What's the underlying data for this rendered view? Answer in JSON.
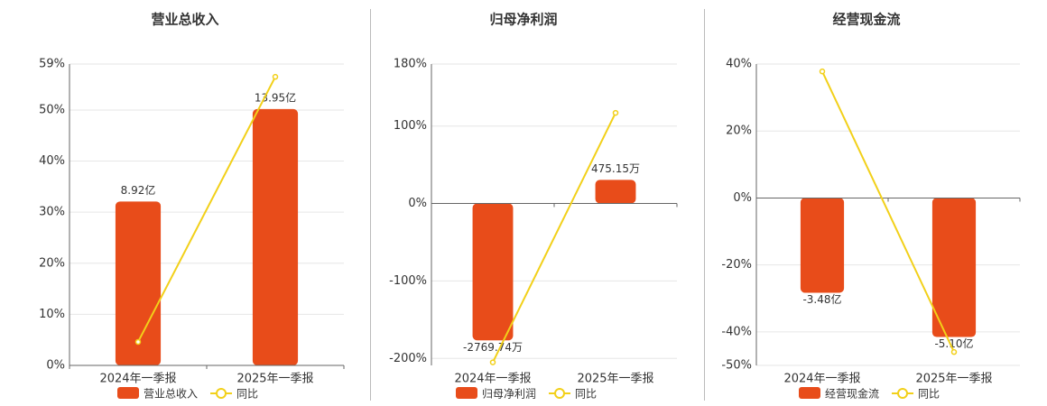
{
  "chart_data": [
    {
      "type": "combo",
      "title": "营业总收入",
      "categories": [
        "2024年一季报",
        "2025年一季报"
      ],
      "ylim": [
        0,
        59
      ],
      "yticks": [
        {
          "value": 0,
          "label": "0%"
        },
        {
          "value": 10,
          "label": "10%"
        },
        {
          "value": 20,
          "label": "20%"
        },
        {
          "value": 30,
          "label": "30%"
        },
        {
          "value": 40,
          "label": "40%"
        },
        {
          "value": 50,
          "label": "50%"
        },
        {
          "value": 59,
          "label": "59%"
        }
      ],
      "y2lim": [
        0,
        16.4
      ],
      "grid": true,
      "series": [
        {
          "name": "营业总收入",
          "type": "bar",
          "axis": "y2",
          "color": "#e84c1a",
          "values": [
            8.92,
            13.95
          ],
          "value_labels": [
            "8.92亿",
            "13.95亿"
          ]
        },
        {
          "name": "同比",
          "type": "line",
          "color": "#f2d019",
          "values": [
            4.6,
            56.5
          ]
        }
      ]
    },
    {
      "type": "combo",
      "title": "归母净利润",
      "categories": [
        "2024年一季报",
        "2025年一季报"
      ],
      "ylim": [
        -209,
        180
      ],
      "yticks": [
        {
          "value": -200,
          "label": "-200%"
        },
        {
          "value": -100,
          "label": "-100%"
        },
        {
          "value": 0,
          "label": "0%"
        },
        {
          "value": 100,
          "label": "100%"
        },
        {
          "value": 180,
          "label": "180%"
        }
      ],
      "y2lim": [
        -3276,
        2818
      ],
      "grid": true,
      "series": [
        {
          "name": "归母净利润",
          "type": "bar",
          "axis": "y2",
          "color": "#e84c1a",
          "values": [
            -2769.74,
            475.15
          ],
          "value_labels": [
            "-2769.74万",
            "475.15万"
          ]
        },
        {
          "name": "同比",
          "type": "line",
          "color": "#f2d019",
          "values": [
            -205,
            117
          ]
        }
      ]
    },
    {
      "type": "combo",
      "title": "经营现金流",
      "categories": [
        "2024年一季报",
        "2025年一季报"
      ],
      "ylim": [
        -50,
        40
      ],
      "yticks": [
        {
          "value": -50,
          "label": "-50%"
        },
        {
          "value": -40,
          "label": "-40%"
        },
        {
          "value": -20,
          "label": "-20%"
        },
        {
          "value": 0,
          "label": "0%"
        },
        {
          "value": 20,
          "label": "20%"
        },
        {
          "value": 40,
          "label": "40%"
        }
      ],
      "y2lim": [
        -6.14,
        4.9
      ],
      "grid": true,
      "series": [
        {
          "name": "经营现金流",
          "type": "bar",
          "axis": "y2",
          "color": "#e84c1a",
          "values": [
            -3.48,
            -5.1
          ],
          "value_labels": [
            "-3.48亿",
            "-5.10亿"
          ]
        },
        {
          "name": "同比",
          "type": "line",
          "color": "#f2d019",
          "values": [
            37.8,
            -46
          ]
        }
      ]
    }
  ]
}
